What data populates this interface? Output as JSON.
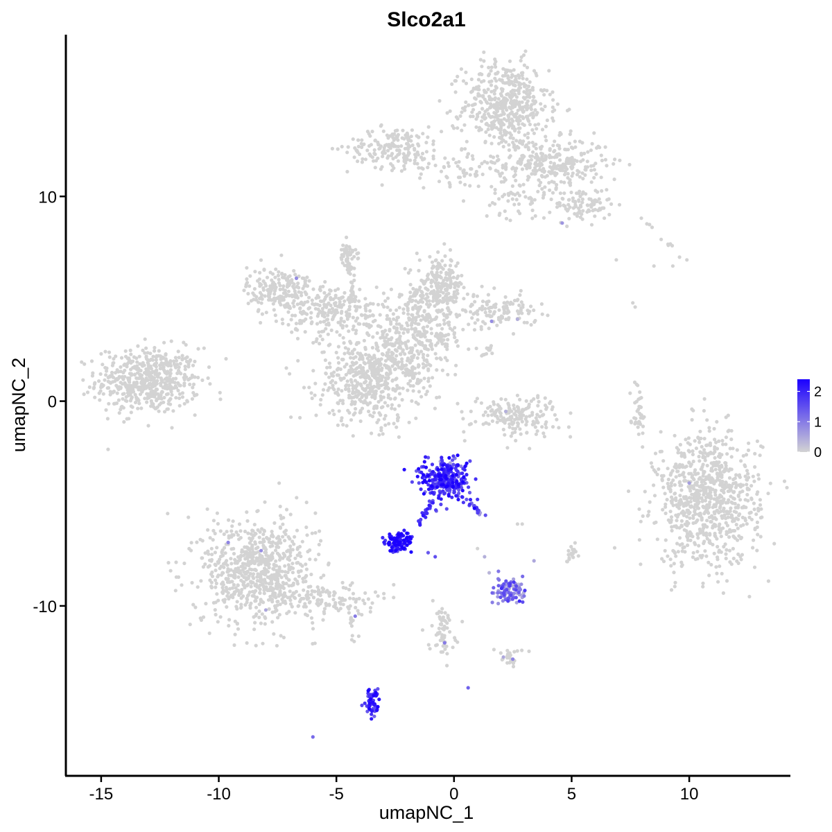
{
  "chart_data": {
    "type": "scatter",
    "title": "Slco2a1",
    "xlabel": "umapNC_1",
    "ylabel": "umapNC_2",
    "xlim": [
      -16.5,
      14.3
    ],
    "ylim": [
      -18.3,
      17.9
    ],
    "x_ticks": [
      -15,
      -10,
      -5,
      0,
      5,
      10
    ],
    "x_tick_labels": [
      "-15",
      "-10",
      "-5",
      "0",
      "5",
      "10"
    ],
    "y_ticks": [
      -10,
      0,
      10
    ],
    "y_tick_labels": [
      "-10",
      "0",
      "10"
    ],
    "color_scale": {
      "low_color": "#d3d3d3",
      "high_color": "#1b00ff",
      "min": 0,
      "max": 2.4,
      "breaks": [
        0,
        1,
        2
      ],
      "break_labels": [
        "0",
        "1",
        "2"
      ],
      "legend_position": "right"
    },
    "grid": false,
    "clusters": [
      {
        "cx": -13.0,
        "cy": 1.0,
        "sx": 1.1,
        "sy": 0.8,
        "n": 550,
        "expr": 0
      },
      {
        "cx": 2.2,
        "cy": 14.4,
        "sx": 0.9,
        "sy": 1.1,
        "n": 500,
        "expr": 0
      },
      {
        "cx": -2.5,
        "cy": 12.4,
        "sx": 1.0,
        "sy": 0.5,
        "n": 180,
        "expr": 0
      },
      {
        "cx": 0.8,
        "cy": 11.4,
        "sx": 1.2,
        "sy": 0.4,
        "n": 80,
        "expr": 0
      },
      {
        "cx": 4.3,
        "cy": 11.6,
        "sx": 1.1,
        "sy": 0.6,
        "n": 260,
        "expr": 0
      },
      {
        "cx": 5.5,
        "cy": 9.6,
        "sx": 0.6,
        "sy": 0.4,
        "n": 90,
        "expr": 0
      },
      {
        "cx": 2.8,
        "cy": 9.9,
        "sx": 0.8,
        "sy": 0.5,
        "n": 60,
        "expr": 0
      },
      {
        "cx": -7.4,
        "cy": 5.4,
        "sx": 0.7,
        "sy": 0.6,
        "n": 200,
        "expr": 0
      },
      {
        "cx": -5.0,
        "cy": 4.4,
        "sx": 1.1,
        "sy": 0.6,
        "n": 220,
        "expr": 0
      },
      {
        "cx": -3.6,
        "cy": 1.1,
        "sx": 1.1,
        "sy": 1.1,
        "n": 520,
        "expr": 0
      },
      {
        "cx": -1.5,
        "cy": 3.3,
        "sx": 1.0,
        "sy": 1.0,
        "n": 320,
        "expr": 0
      },
      {
        "cx": -0.6,
        "cy": 5.6,
        "sx": 0.5,
        "sy": 0.7,
        "n": 200,
        "expr": 0
      },
      {
        "cx": 1.9,
        "cy": 4.4,
        "sx": 0.8,
        "sy": 0.4,
        "n": 120,
        "expr": 0
      },
      {
        "cx": -4.5,
        "cy": 7.2,
        "sx": 0.25,
        "sy": 0.3,
        "n": 40,
        "expr": 0
      },
      {
        "cx": 2.6,
        "cy": -0.7,
        "sx": 0.9,
        "sy": 0.5,
        "n": 170,
        "expr": 0
      },
      {
        "cx": 10.8,
        "cy": -4.8,
        "sx": 1.1,
        "sy": 1.6,
        "n": 820,
        "expr": 0
      },
      {
        "cx": -8.3,
        "cy": -8.3,
        "sx": 1.2,
        "sy": 1.3,
        "n": 750,
        "expr": 0
      },
      {
        "cx": -5.3,
        "cy": -9.7,
        "sx": 1.0,
        "sy": 0.4,
        "n": 110,
        "expr": 0
      },
      {
        "cx": -0.5,
        "cy": -11.2,
        "sx": 0.3,
        "sy": 0.6,
        "n": 40,
        "expr": 0
      },
      {
        "cx": 2.3,
        "cy": -12.4,
        "sx": 0.3,
        "sy": 0.25,
        "n": 25,
        "expr": 0
      },
      {
        "cx": 5.0,
        "cy": -7.5,
        "sx": 0.12,
        "sy": 0.25,
        "n": 18,
        "expr": 0
      },
      {
        "cx": 7.8,
        "cy": -0.3,
        "sx": 0.15,
        "sy": 0.6,
        "n": 35,
        "expr": 0
      },
      {
        "cx": -0.4,
        "cy": -3.8,
        "sx": 0.5,
        "sy": 0.5,
        "n": 280,
        "expr": 1.8
      },
      {
        "cx": -2.4,
        "cy": -6.9,
        "sx": 0.3,
        "sy": 0.25,
        "n": 95,
        "expr": 2.1
      },
      {
        "cx": 2.4,
        "cy": -9.2,
        "sx": 0.35,
        "sy": 0.35,
        "n": 95,
        "expr": 1.0
      },
      {
        "cx": -3.5,
        "cy": -14.7,
        "sx": 0.15,
        "sy": 0.4,
        "n": 55,
        "expr": 1.9
      }
    ],
    "strands": [
      {
        "x1": -1.5,
        "y1": -6.0,
        "x2": -0.9,
        "y2": -4.8,
        "n": 25,
        "expr": 1.7
      },
      {
        "x1": 0.6,
        "y1": -4.8,
        "x2": 1.2,
        "y2": -5.6,
        "n": 18,
        "expr": 1.5
      },
      {
        "x1": -2.8,
        "y1": 2.2,
        "x2": -1.3,
        "y2": 0.8,
        "n": 55,
        "expr": 0
      },
      {
        "x1": -4.6,
        "y1": 7.4,
        "x2": -4.2,
        "y2": 4.6,
        "n": 35,
        "expr": 0
      },
      {
        "x1": -0.6,
        "y1": -10.3,
        "x2": -0.4,
        "y2": -12.0,
        "n": 22,
        "expr": 0
      },
      {
        "x1": -4.4,
        "y1": -10.4,
        "x2": -4.2,
        "y2": -11.8,
        "n": 12,
        "expr": 0
      },
      {
        "x1": 8.0,
        "y1": 9.0,
        "x2": 9.8,
        "y2": 6.8,
        "n": 10,
        "expr": 0
      },
      {
        "x1": 1.2,
        "y1": 2.2,
        "x2": 1.8,
        "y2": 2.8,
        "n": 12,
        "expr": 0
      }
    ],
    "extra_points": [
      {
        "x": 6.9,
        "y": 6.9,
        "expr": 0
      },
      {
        "x": 8.5,
        "y": 6.6,
        "expr": 0
      },
      {
        "x": 9.3,
        "y": 6.6,
        "expr": 0
      },
      {
        "x": 9.9,
        "y": 6.9,
        "expr": 0
      },
      {
        "x": 7.6,
        "y": 4.8,
        "expr": 0
      },
      {
        "x": 7.7,
        "y": 4.6,
        "expr": 0
      },
      {
        "x": 2.7,
        "y": 4.0,
        "expr": 0.4
      },
      {
        "x": 1.6,
        "y": 3.9,
        "expr": 0.8
      },
      {
        "x": 4.6,
        "y": 8.7,
        "expr": 0.7
      },
      {
        "x": -6.7,
        "y": 6.0,
        "expr": 0.8
      },
      {
        "x": -9.6,
        "y": -6.9,
        "expr": 0.9
      },
      {
        "x": -8.2,
        "y": -7.3,
        "expr": 0.8
      },
      {
        "x": -8.0,
        "y": -10.2,
        "expr": 0.5
      },
      {
        "x": -4.2,
        "y": -10.5,
        "expr": 1.0
      },
      {
        "x": -6.0,
        "y": -16.4,
        "expr": 1.2
      },
      {
        "x": 0.6,
        "y": -14.0,
        "expr": 1.3
      },
      {
        "x": -0.4,
        "y": -11.8,
        "expr": 1.0
      },
      {
        "x": 1.3,
        "y": -7.6,
        "expr": 0.4
      },
      {
        "x": 1.0,
        "y": -7.2,
        "expr": 0
      },
      {
        "x": 2.7,
        "y": -6.0,
        "expr": 0
      },
      {
        "x": 2.9,
        "y": -6.0,
        "expr": 0
      },
      {
        "x": 3.4,
        "y": -7.8,
        "expr": 0.5
      },
      {
        "x": -0.8,
        "y": -7.6,
        "expr": 1.5
      },
      {
        "x": -1.1,
        "y": -7.4,
        "expr": 1.4
      },
      {
        "x": 2.5,
        "y": -12.6,
        "expr": 0.9
      },
      {
        "x": 2.1,
        "y": -12.5,
        "expr": 0.5
      },
      {
        "x": 10.0,
        "y": -4.0,
        "expr": 0.6
      },
      {
        "x": 2.2,
        "y": -0.5,
        "expr": 0.4
      },
      {
        "x": 0.2,
        "y": -4.5,
        "expr": 1.4
      },
      {
        "x": 1.0,
        "y": -4.8,
        "expr": 1.8
      },
      {
        "x": -1.3,
        "y": -3.6,
        "expr": 2.4
      },
      {
        "x": -0.9,
        "y": -4.2,
        "expr": 2.2
      }
    ]
  }
}
